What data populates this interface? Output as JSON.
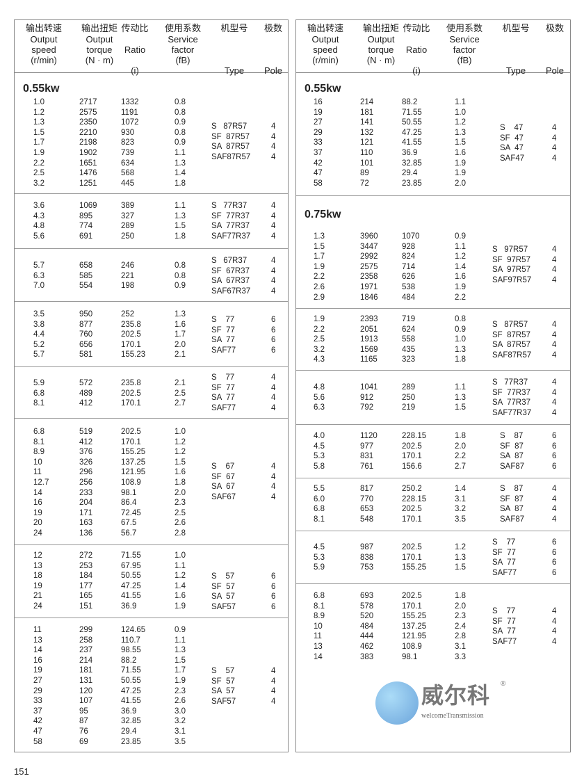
{
  "header": {
    "columns": [
      {
        "cn": "输出转速",
        "en": [
          "Output",
          "speed",
          "(r/min)"
        ]
      },
      {
        "cn": "输出扭矩",
        "en": [
          "Output",
          "torque",
          "(N · m)"
        ]
      },
      {
        "cn": "传动比",
        "en": [
          "",
          "Ratio",
          "",
          "(i)"
        ]
      },
      {
        "cn": "使用系数",
        "en": [
          "Service",
          "factor",
          "(fB)"
        ]
      },
      {
        "cn": "机型号",
        "en": [
          "",
          "",
          "",
          "Type"
        ]
      },
      {
        "cn": "极数",
        "en": [
          "",
          "",
          "",
          "Pole"
        ]
      }
    ]
  },
  "left_table": {
    "groups": [
      {
        "title": "0.55kw",
        "rows": [
          [
            "1.0",
            "2717",
            "1332",
            "0.8"
          ],
          [
            "1.2",
            "2575",
            "1191",
            "0.8"
          ],
          [
            "1.3",
            "2350",
            "1072",
            "0.9"
          ],
          [
            "1.5",
            "2210",
            "930",
            "0.8"
          ],
          [
            "1.7",
            "2198",
            "823",
            "0.9"
          ],
          [
            "1.9",
            "1902",
            "739",
            "1.1"
          ],
          [
            "2.2",
            "1651",
            "634",
            "1.3"
          ],
          [
            "2.5",
            "1476",
            "568",
            "1.4"
          ],
          [
            "3.2",
            "1251",
            "445",
            "1.8"
          ]
        ],
        "types": [
          [
            "S   87R57",
            "4"
          ],
          [
            "SF  87R57",
            "4"
          ],
          [
            "SA  87R57",
            "4"
          ],
          [
            "SAF87R57",
            "4"
          ]
        ]
      },
      {
        "rows": [
          [
            "3.6",
            "1069",
            "389",
            "1.1"
          ],
          [
            "4.3",
            "895",
            "327",
            "1.3"
          ],
          [
            "4.8",
            "774",
            "289",
            "1.5"
          ],
          [
            "5.6",
            "691",
            "250",
            "1.8"
          ]
        ],
        "types": [
          [
            "S   77R37",
            "4"
          ],
          [
            "SF  77R37",
            "4"
          ],
          [
            "SA  77R37",
            "4"
          ],
          [
            "SAF77R37",
            "4"
          ]
        ]
      },
      {
        "rows": [
          [
            "5.7",
            "658",
            "246",
            "0.8"
          ],
          [
            "6.3",
            "585",
            "221",
            "0.8"
          ],
          [
            "7.0",
            "554",
            "198",
            "0.9"
          ]
        ],
        "types": [
          [
            "S   67R37",
            "4"
          ],
          [
            "SF  67R37",
            "4"
          ],
          [
            "SA  67R37",
            "4"
          ],
          [
            "SAF67R37",
            "4"
          ]
        ]
      },
      {
        "rows": [
          [
            "3.5",
            "950",
            "252",
            "1.3"
          ],
          [
            "3.8",
            "877",
            "235.8",
            "1.6"
          ],
          [
            "4.4",
            "760",
            "202.5",
            "1.7"
          ],
          [
            "5.2",
            "656",
            "170.1",
            "2.0"
          ],
          [
            "5.7",
            "581",
            "155.23",
            "2.1"
          ]
        ],
        "types": [
          [
            "S    77",
            "6"
          ],
          [
            "SF  77",
            "6"
          ],
          [
            "SA  77",
            "6"
          ],
          [
            "SAF77",
            "6"
          ]
        ]
      },
      {
        "rows": [
          [
            "5.9",
            "572",
            "235.8",
            "2.1"
          ],
          [
            "6.8",
            "489",
            "202.5",
            "2.5"
          ],
          [
            "8.1",
            "412",
            "170.1",
            "2.7"
          ]
        ],
        "types": [
          [
            "S    77",
            "4"
          ],
          [
            "SF  77",
            "4"
          ],
          [
            "SA  77",
            "4"
          ],
          [
            "SAF77",
            "4"
          ]
        ]
      },
      {
        "rows": [
          [
            "6.8",
            "519",
            "202.5",
            "1.0"
          ],
          [
            "8.1",
            "412",
            "170.1",
            "1.2"
          ],
          [
            "8.9",
            "376",
            "155.25",
            "1.2"
          ],
          [
            "10",
            "326",
            "137.25",
            "1.5"
          ],
          [
            "11",
            "296",
            "121.95",
            "1.6"
          ],
          [
            "12.7",
            "256",
            "108.9",
            "1.8"
          ],
          [
            "14",
            "233",
            "98.1",
            "2.0"
          ],
          [
            "16",
            "204",
            "86.4",
            "2.3"
          ],
          [
            "19",
            "171",
            "72.45",
            "2.5"
          ],
          [
            "20",
            "163",
            "67.5",
            "2.6"
          ],
          [
            "24",
            "136",
            "56.7",
            "2.8"
          ]
        ],
        "types": [
          [
            "S    67",
            "4"
          ],
          [
            "SF  67",
            "4"
          ],
          [
            "SA  67",
            "4"
          ],
          [
            "SAF67",
            "4"
          ]
        ]
      },
      {
        "rows": [
          [
            "12",
            "272",
            "71.55",
            "1.0"
          ],
          [
            "13",
            "253",
            "67.95",
            "1.1"
          ],
          [
            "18",
            "184",
            "50.55",
            "1.2"
          ],
          [
            "19",
            "177",
            "47.25",
            "1.4"
          ],
          [
            "21",
            "165",
            "41.55",
            "1.6"
          ],
          [
            "24",
            "151",
            "36.9",
            "1.9"
          ]
        ],
        "types": [
          [
            "S    57",
            "6"
          ],
          [
            "SF  57",
            "6"
          ],
          [
            "SA  57",
            "6"
          ],
          [
            "SAF57",
            "6"
          ]
        ]
      },
      {
        "rows": [
          [
            "11",
            "299",
            "124.65",
            "0.9"
          ],
          [
            "13",
            "258",
            "110.7",
            "1.1"
          ],
          [
            "14",
            "237",
            "98.55",
            "1.3"
          ],
          [
            "16",
            "214",
            "88.2",
            "1.5"
          ],
          [
            "19",
            "181",
            "71.55",
            "1.7"
          ],
          [
            "27",
            "131",
            "50.55",
            "1.9"
          ],
          [
            "29",
            "120",
            "47.25",
            "2.3"
          ],
          [
            "33",
            "107",
            "41.55",
            "2.6"
          ],
          [
            "37",
            "95",
            "36.9",
            "3.0"
          ],
          [
            "42",
            "87",
            "32.85",
            "3.2"
          ],
          [
            "47",
            "76",
            "29.4",
            "3.1"
          ],
          [
            "58",
            "69",
            "23.85",
            "3.5"
          ]
        ],
        "types": [
          [
            "S    57",
            "4"
          ],
          [
            "SF  57",
            "4"
          ],
          [
            "SA  57",
            "4"
          ],
          [
            "SAF57",
            "4"
          ]
        ]
      }
    ]
  },
  "right_table": {
    "groups": [
      {
        "title": "0.55kw",
        "rows": [
          [
            "16",
            "214",
            "88.2",
            "1.1"
          ],
          [
            "19",
            "181",
            "71.55",
            "1.0"
          ],
          [
            "27",
            "141",
            "50.55",
            "1.2"
          ],
          [
            "29",
            "132",
            "47.25",
            "1.3"
          ],
          [
            "33",
            "121",
            "41.55",
            "1.5"
          ],
          [
            "37",
            "110",
            "36.9",
            "1.6"
          ],
          [
            "42",
            "101",
            "32.85",
            "1.9"
          ],
          [
            "47",
            "89",
            "29.4",
            "1.9"
          ],
          [
            "58",
            "72",
            "23.85",
            "2.0"
          ]
        ],
        "types": [
          [
            "S    47",
            "4"
          ],
          [
            "SF  47",
            "4"
          ],
          [
            "SA  47",
            "4"
          ],
          [
            "SAF47",
            "4"
          ]
        ]
      },
      {
        "title": "0.75kw",
        "rows": [
          [
            "1.3",
            "3960",
            "1070",
            "0.9"
          ],
          [
            "1.5",
            "3447",
            "928",
            "1.1"
          ],
          [
            "1.7",
            "2992",
            "824",
            "1.2"
          ],
          [
            "1.9",
            "2575",
            "714",
            "1.4"
          ],
          [
            "2.2",
            "2358",
            "626",
            "1.6"
          ],
          [
            "2.6",
            "1971",
            "538",
            "1.9"
          ],
          [
            "2.9",
            "1846",
            "484",
            "2.2"
          ]
        ],
        "types": [
          [
            "S   97R57",
            "4"
          ],
          [
            "SF  97R57",
            "4"
          ],
          [
            "SA  97R57",
            "4"
          ],
          [
            "SAF97R57",
            "4"
          ]
        ]
      },
      {
        "rows": [
          [
            "1.9",
            "2393",
            "719",
            "0.8"
          ],
          [
            "2.2",
            "2051",
            "624",
            "0.9"
          ],
          [
            "2.5",
            "1913",
            "558",
            "1.0"
          ],
          [
            "3.2",
            "1569",
            "435",
            "1.3"
          ],
          [
            "4.3",
            "1165",
            "323",
            "1.8"
          ]
        ],
        "types": [
          [
            "S   87R57",
            "4"
          ],
          [
            "SF  87R57",
            "4"
          ],
          [
            "SA  87R57",
            "4"
          ],
          [
            "SAF87R57",
            "4"
          ]
        ]
      },
      {
        "rows": [
          [
            "4.8",
            "1041",
            "289",
            "1.1"
          ],
          [
            "5.6",
            "912",
            "250",
            "1.3"
          ],
          [
            "6.3",
            "792",
            "219",
            "1.5"
          ]
        ],
        "types": [
          [
            "S   77R37",
            "4"
          ],
          [
            "SF  77R37",
            "4"
          ],
          [
            "SA  77R37",
            "4"
          ],
          [
            "SAF77R37",
            "4"
          ]
        ]
      },
      {
        "rows": [
          [
            "4.0",
            "1120",
            "228.15",
            "1.8"
          ],
          [
            "4.5",
            "977",
            "202.5",
            "2.0"
          ],
          [
            "5.3",
            "831",
            "170.1",
            "2.2"
          ],
          [
            "5.8",
            "761",
            "156.6",
            "2.7"
          ]
        ],
        "types": [
          [
            "S    87",
            "6"
          ],
          [
            "SF  87",
            "6"
          ],
          [
            "SA  87",
            "6"
          ],
          [
            "SAF87",
            "6"
          ]
        ]
      },
      {
        "rows": [
          [
            "5.5",
            "817",
            "250.2",
            "1.4"
          ],
          [
            "6.0",
            "770",
            "228.15",
            "3.1"
          ],
          [
            "6.8",
            "653",
            "202.5",
            "3.2"
          ],
          [
            "8.1",
            "548",
            "170.1",
            "3.5"
          ]
        ],
        "types": [
          [
            "S    87",
            "4"
          ],
          [
            "SF  87",
            "4"
          ],
          [
            "SA  87",
            "4"
          ],
          [
            "SAF87",
            "4"
          ]
        ]
      },
      {
        "rows": [
          [
            "4.5",
            "987",
            "202.5",
            "1.2"
          ],
          [
            "5.3",
            "838",
            "170.1",
            "1.3"
          ],
          [
            "5.9",
            "753",
            "155.25",
            "1.5"
          ]
        ],
        "types": [
          [
            "S    77",
            "6"
          ],
          [
            "SF  77",
            "6"
          ],
          [
            "SA  77",
            "6"
          ],
          [
            "SAF77",
            "6"
          ]
        ]
      },
      {
        "rows": [
          [
            "6.8",
            "693",
            "202.5",
            "1.8"
          ],
          [
            "8.1",
            "578",
            "170.1",
            "2.0"
          ],
          [
            "8.9",
            "520",
            "155.25",
            "2.3"
          ],
          [
            "10",
            "484",
            "137.25",
            "2.4"
          ],
          [
            "11",
            "444",
            "121.95",
            "2.8"
          ],
          [
            "13",
            "462",
            "108.9",
            "3.1"
          ],
          [
            "14",
            "383",
            "98.1",
            "3.3"
          ]
        ],
        "types": [
          [
            "S    77",
            "4"
          ],
          [
            "SF  77",
            "4"
          ],
          [
            "SA  77",
            "4"
          ],
          [
            "SAF77",
            "4"
          ]
        ]
      }
    ]
  },
  "watermark": {
    "brand_cn": "威尔科",
    "brand_en": "welcomeTransmission",
    "registered": "®",
    "logo_color": "#3a86cf"
  },
  "page_number": "151"
}
